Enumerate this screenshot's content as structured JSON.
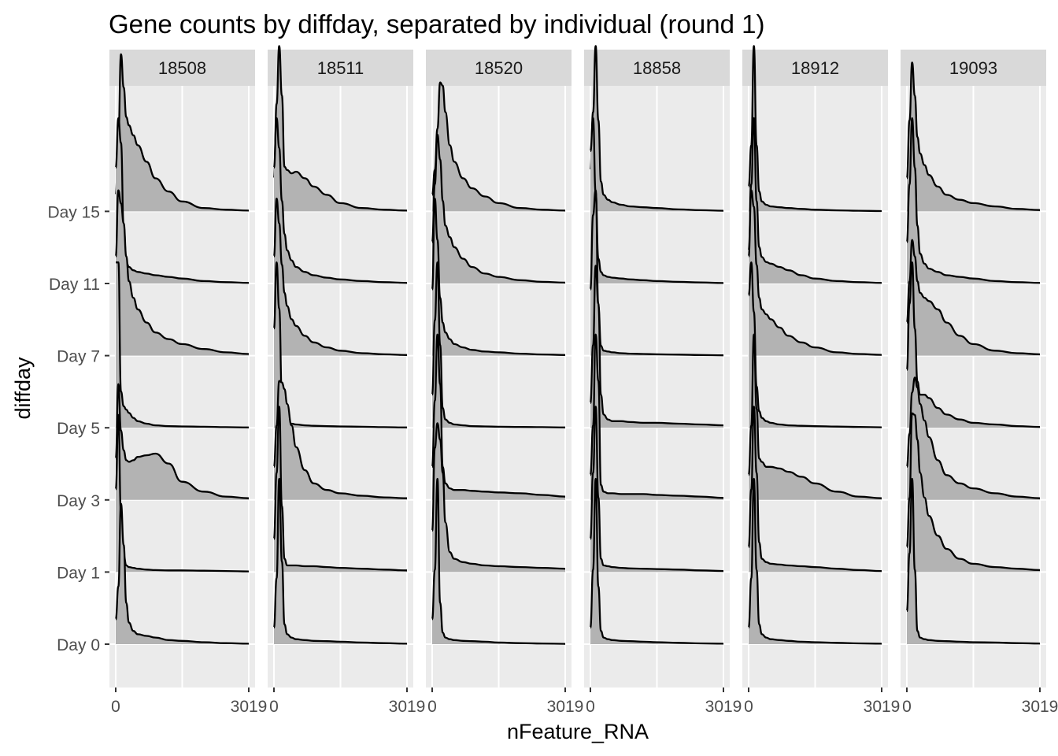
{
  "chart_data": {
    "type": "ridgeline-density",
    "title": "Gene counts by diffday, separated by individual (round 1)",
    "xlabel": "nFeature_RNA",
    "ylabel": "diffday",
    "xlim": [
      0,
      3019
    ],
    "x_tick_labels": [
      "0",
      "3019"
    ],
    "panels": [
      "18508",
      "18511",
      "18520",
      "18858",
      "18912",
      "19093"
    ],
    "diffdays": [
      "Day 0",
      "Day 1",
      "Day 3",
      "Day 5",
      "Day 7",
      "Day 11",
      "Day 15"
    ],
    "fill_color": "#b3b3b3",
    "line_color": "#000000",
    "panel_bg": "#ebebeb",
    "strip_bg": "#d9d9d9",
    "curve_points_x": [
      0,
      60,
      120,
      180,
      240,
      300,
      400,
      500,
      700,
      900,
      1200,
      1500,
      2000,
      2500,
      3019
    ],
    "densities": [
      [
        [
          0.15,
          0.35,
          0.85,
          0.6,
          0.25,
          0.13,
          0.08,
          0.06,
          0.05,
          0.04,
          0.025,
          0.02,
          0.012,
          0.006,
          0.003
        ],
        [
          0.5,
          0.95,
          0.35,
          0.1,
          0.04,
          0.03,
          0.025,
          0.02,
          0.015,
          0.012,
          0.01,
          0.01,
          0.008,
          0.006,
          0.004
        ],
        [
          0.25,
          0.7,
          0.42,
          0.3,
          0.24,
          0.23,
          0.24,
          0.26,
          0.27,
          0.28,
          0.22,
          0.11,
          0.05,
          0.02,
          0.01
        ],
        [
          1.0,
          1.0,
          0.22,
          0.13,
          0.11,
          0.09,
          0.06,
          0.04,
          0.025,
          0.015,
          0.01,
          0.008,
          0.006,
          0.004,
          0.002
        ],
        [
          0.6,
          1.0,
          0.92,
          0.8,
          0.6,
          0.45,
          0.35,
          0.28,
          0.2,
          0.14,
          0.1,
          0.07,
          0.04,
          0.02,
          0.01
        ],
        [
          0.7,
          1.0,
          0.85,
          0.35,
          0.13,
          0.1,
          0.08,
          0.07,
          0.06,
          0.05,
          0.04,
          0.03,
          0.015,
          0.008,
          0.004
        ],
        [
          0.1,
          0.45,
          0.95,
          0.75,
          0.57,
          0.52,
          0.46,
          0.4,
          0.3,
          0.2,
          0.12,
          0.06,
          0.02,
          0.01,
          0.005
        ]
      ],
      [
        [
          0.1,
          0.4,
          1.0,
          0.5,
          0.12,
          0.06,
          0.04,
          0.03,
          0.025,
          0.02,
          0.018,
          0.015,
          0.01,
          0.006,
          0.003
        ],
        [
          0.2,
          0.6,
          1.0,
          0.4,
          0.08,
          0.04,
          0.04,
          0.04,
          0.035,
          0.035,
          0.03,
          0.025,
          0.02,
          0.015,
          0.01
        ],
        [
          0.2,
          0.45,
          0.72,
          0.71,
          0.67,
          0.58,
          0.45,
          0.32,
          0.18,
          0.1,
          0.06,
          0.04,
          0.025,
          0.015,
          0.01
        ],
        [
          0.6,
          1.0,
          0.72,
          0.2,
          0.06,
          0.04,
          0.025,
          0.02,
          0.015,
          0.012,
          0.01,
          0.008,
          0.006,
          0.004,
          0.002
        ],
        [
          0.6,
          0.95,
          0.8,
          0.55,
          0.38,
          0.3,
          0.22,
          0.18,
          0.12,
          0.08,
          0.05,
          0.03,
          0.015,
          0.008,
          0.004
        ],
        [
          0.7,
          1.0,
          0.82,
          0.5,
          0.3,
          0.2,
          0.14,
          0.1,
          0.07,
          0.05,
          0.035,
          0.025,
          0.015,
          0.008,
          0.004
        ],
        [
          0.2,
          0.65,
          1.0,
          0.7,
          0.27,
          0.25,
          0.23,
          0.24,
          0.2,
          0.15,
          0.1,
          0.05,
          0.02,
          0.01,
          0.005
        ]
      ],
      [
        [
          0.15,
          0.45,
          1.0,
          0.25,
          0.07,
          0.04,
          0.03,
          0.025,
          0.02,
          0.018,
          0.015,
          0.01,
          0.006,
          0.004,
          0.002
        ],
        [
          0.25,
          0.75,
          0.9,
          0.8,
          0.6,
          0.3,
          0.12,
          0.08,
          0.06,
          0.05,
          0.04,
          0.035,
          0.03,
          0.025,
          0.02
        ],
        [
          0.2,
          0.6,
          1.0,
          0.7,
          0.2,
          0.1,
          0.07,
          0.06,
          0.06,
          0.055,
          0.05,
          0.045,
          0.04,
          0.03,
          0.02
        ],
        [
          0.2,
          0.65,
          1.0,
          0.5,
          0.12,
          0.05,
          0.03,
          0.02,
          0.015,
          0.01,
          0.008,
          0.006,
          0.005,
          0.004,
          0.002
        ],
        [
          0.4,
          0.95,
          0.7,
          0.35,
          0.2,
          0.14,
          0.1,
          0.07,
          0.05,
          0.035,
          0.025,
          0.02,
          0.012,
          0.007,
          0.004
        ],
        [
          0.25,
          0.6,
          0.9,
          0.75,
          0.5,
          0.35,
          0.28,
          0.22,
          0.15,
          0.1,
          0.06,
          0.04,
          0.02,
          0.01,
          0.005
        ],
        [
          0.1,
          0.25,
          0.5,
          0.78,
          0.76,
          0.6,
          0.4,
          0.3,
          0.2,
          0.14,
          0.09,
          0.05,
          0.02,
          0.01,
          0.005
        ]
      ],
      [
        [
          0.1,
          0.45,
          1.0,
          0.35,
          0.08,
          0.04,
          0.03,
          0.025,
          0.02,
          0.018,
          0.015,
          0.012,
          0.008,
          0.005,
          0.003
        ],
        [
          0.2,
          0.6,
          1.0,
          0.45,
          0.08,
          0.04,
          0.035,
          0.03,
          0.025,
          0.022,
          0.02,
          0.018,
          0.015,
          0.01,
          0.006
        ],
        [
          0.15,
          0.45,
          1.0,
          0.72,
          0.09,
          0.05,
          0.04,
          0.04,
          0.035,
          0.035,
          0.035,
          0.03,
          0.025,
          0.02,
          0.012
        ],
        [
          0.15,
          0.5,
          0.98,
          0.75,
          0.2,
          0.08,
          0.05,
          0.04,
          0.04,
          0.035,
          0.03,
          0.03,
          0.025,
          0.02,
          0.015
        ],
        [
          0.4,
          0.85,
          1.0,
          0.3,
          0.06,
          0.03,
          0.025,
          0.02,
          0.015,
          0.012,
          0.01,
          0.008,
          0.006,
          0.004,
          0.002
        ],
        [
          0.8,
          1.0,
          0.55,
          0.15,
          0.07,
          0.05,
          0.04,
          0.035,
          0.03,
          0.025,
          0.02,
          0.015,
          0.01,
          0.006,
          0.003
        ],
        [
          0.25,
          0.6,
          1.0,
          0.55,
          0.18,
          0.1,
          0.07,
          0.055,
          0.04,
          0.03,
          0.025,
          0.02,
          0.012,
          0.007,
          0.004
        ]
      ],
      [
        [
          0.1,
          0.4,
          1.0,
          0.45,
          0.12,
          0.06,
          0.04,
          0.03,
          0.025,
          0.02,
          0.015,
          0.012,
          0.008,
          0.005,
          0.003
        ],
        [
          0.15,
          0.5,
          1.0,
          0.6,
          0.18,
          0.08,
          0.06,
          0.05,
          0.045,
          0.04,
          0.035,
          0.03,
          0.02,
          0.012,
          0.006
        ],
        [
          0.15,
          0.45,
          1.0,
          0.55,
          0.25,
          0.23,
          0.2,
          0.2,
          0.19,
          0.17,
          0.14,
          0.1,
          0.05,
          0.02,
          0.01
        ],
        [
          0.8,
          1.0,
          0.7,
          0.25,
          0.1,
          0.06,
          0.04,
          0.03,
          0.02,
          0.015,
          0.012,
          0.01,
          0.007,
          0.005,
          0.003
        ],
        [
          0.6,
          1.0,
          0.9,
          0.55,
          0.35,
          0.28,
          0.25,
          0.22,
          0.17,
          0.12,
          0.08,
          0.05,
          0.02,
          0.01,
          0.005
        ],
        [
          0.2,
          0.6,
          1.0,
          0.5,
          0.22,
          0.16,
          0.13,
          0.12,
          0.1,
          0.08,
          0.05,
          0.03,
          0.015,
          0.008,
          0.004
        ],
        [
          0.15,
          0.4,
          1.0,
          0.4,
          0.12,
          0.06,
          0.04,
          0.03,
          0.025,
          0.02,
          0.015,
          0.01,
          0.006,
          0.004,
          0.002
        ]
      ],
      [
        [
          0.2,
          0.55,
          1.0,
          0.45,
          0.08,
          0.04,
          0.03,
          0.025,
          0.02,
          0.018,
          0.015,
          0.012,
          0.01,
          0.006,
          0.004
        ],
        [
          0.15,
          0.45,
          0.96,
          0.95,
          0.8,
          0.6,
          0.45,
          0.34,
          0.22,
          0.14,
          0.08,
          0.05,
          0.03,
          0.02,
          0.012
        ],
        [
          0.2,
          0.4,
          0.65,
          0.74,
          0.68,
          0.58,
          0.48,
          0.38,
          0.24,
          0.15,
          0.1,
          0.07,
          0.04,
          0.02,
          0.01
        ],
        [
          0.35,
          0.75,
          1.0,
          0.6,
          0.28,
          0.2,
          0.2,
          0.18,
          0.12,
          0.08,
          0.05,
          0.03,
          0.02,
          0.01,
          0.005
        ],
        [
          0.2,
          0.45,
          0.7,
          0.6,
          0.45,
          0.38,
          0.35,
          0.33,
          0.28,
          0.2,
          0.12,
          0.07,
          0.03,
          0.015,
          0.008
        ],
        [
          0.25,
          0.6,
          1.0,
          0.7,
          0.35,
          0.18,
          0.12,
          0.09,
          0.07,
          0.05,
          0.04,
          0.03,
          0.015,
          0.008,
          0.004
        ],
        [
          0.2,
          0.55,
          0.9,
          0.7,
          0.45,
          0.35,
          0.28,
          0.22,
          0.15,
          0.1,
          0.07,
          0.05,
          0.03,
          0.015,
          0.008
        ]
      ]
    ]
  }
}
